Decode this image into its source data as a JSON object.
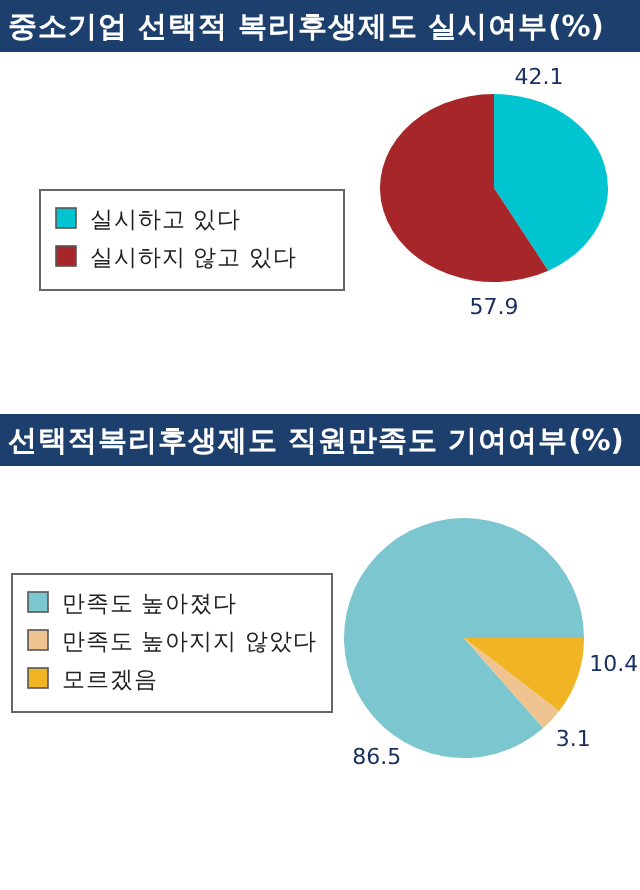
{
  "chart_data": [
    {
      "type": "pie",
      "title": "중소기업 선택적 복리후생제도 실시여부(%)",
      "categories": [
        "실시하고 있다",
        "실시하지 않고 있다"
      ],
      "values": [
        42.1,
        57.9
      ],
      "colors": [
        "#00c4d0",
        "#a6262a"
      ],
      "data_labels": true,
      "legend": "left"
    },
    {
      "type": "pie",
      "title": "선택적복리후생제도 직원만족도 기여여부(%)",
      "categories": [
        "만족도 높아졌다",
        "만족도 높아지지 않았다",
        "모르겠음"
      ],
      "values": [
        86.5,
        3.1,
        10.4
      ],
      "colors": [
        "#7cc6d0",
        "#f0c490",
        "#f0b424"
      ],
      "data_labels": true,
      "legend": "left"
    }
  ]
}
